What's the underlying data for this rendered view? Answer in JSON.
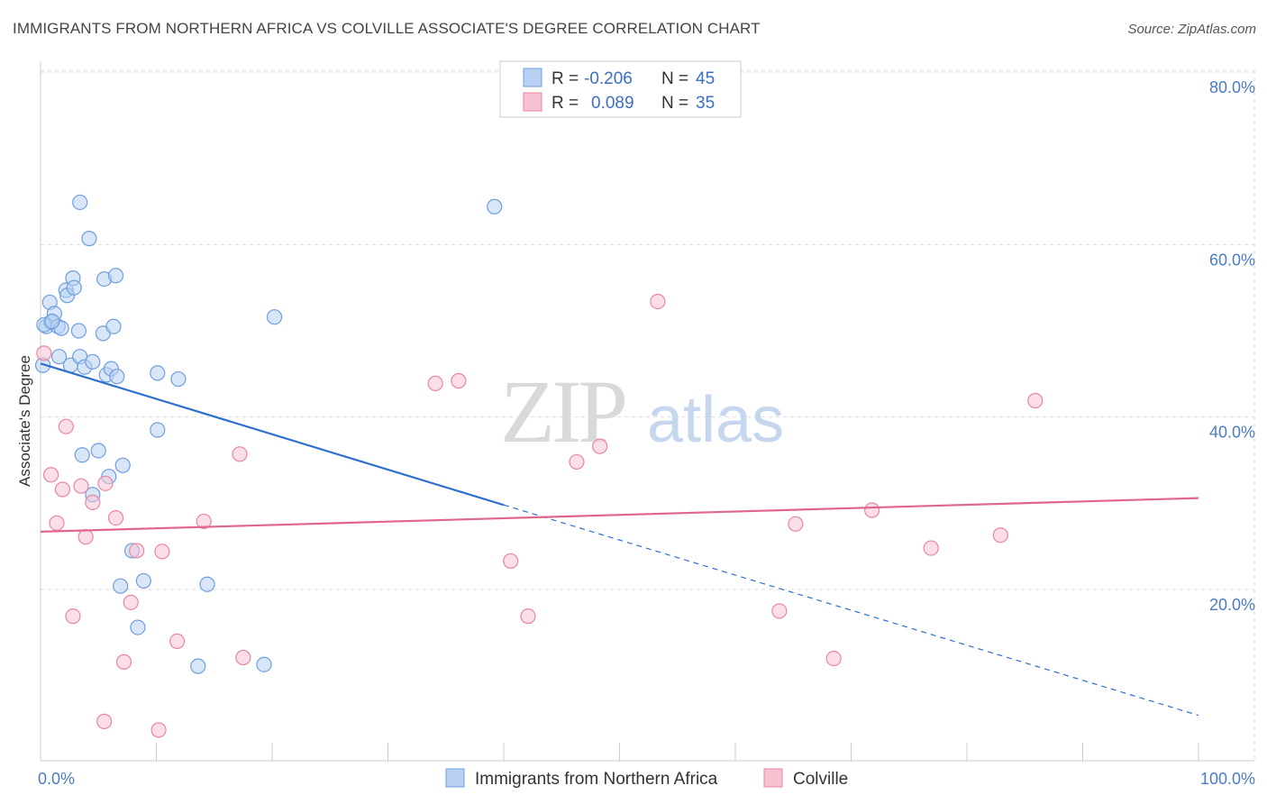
{
  "title": "IMMIGRANTS FROM NORTHERN AFRICA VS COLVILLE ASSOCIATE'S DEGREE CORRELATION CHART",
  "source": "Source: ZipAtlas.com",
  "watermark": {
    "zip": "ZIP",
    "atlas": "atlas"
  },
  "colors": {
    "blue_fill": "#b8d1f3",
    "blue_stroke": "#6f9fdc",
    "blue_line": "#2f6fcd",
    "pink_fill": "#f7c3d3",
    "pink_stroke": "#e8869f",
    "pink_line": "#e0668d",
    "grid": "#dddddd",
    "tick_text": "#4a7bc8"
  },
  "legend": {
    "r_label": "R =",
    "n_label": "N =",
    "rows": [
      {
        "r": "-0.206",
        "n": "45",
        "series": "blue"
      },
      {
        "r": "0.089",
        "n": "35",
        "series": "pink"
      }
    ]
  },
  "chart_data": {
    "type": "scatter",
    "title": "IMMIGRANTS FROM NORTHERN AFRICA VS COLVILLE ASSOCIATE'S DEGREE CORRELATION CHART",
    "xlabel": "",
    "ylabel": "Associate's Degree",
    "xlim": [
      0,
      100
    ],
    "ylim": [
      0,
      85
    ],
    "x_tick_labels": [
      "0.0%",
      "100.0%"
    ],
    "y_ticks": [
      20,
      40,
      60,
      80
    ],
    "y_tick_labels": [
      "20.0%",
      "40.0%",
      "60.0%",
      "80.0%"
    ],
    "grid": true,
    "legend_position": "top-center",
    "series": [
      {
        "name": "Immigrants from Northern Africa",
        "color": "blue",
        "r": -0.206,
        "n": 45,
        "trend": {
          "x0": 0,
          "y0": 46.2,
          "x1": 40,
          "y1": 29.8,
          "dashed_to_x": 100,
          "dashed_to_y": 5.4
        },
        "points": [
          [
            0.2,
            46
          ],
          [
            0.5,
            50.5
          ],
          [
            0.8,
            53.3
          ],
          [
            0.9,
            51
          ],
          [
            1.2,
            52
          ],
          [
            1.5,
            50.5
          ],
          [
            1.6,
            47
          ],
          [
            1.8,
            50.3
          ],
          [
            2.2,
            54.7
          ],
          [
            2.3,
            54.1
          ],
          [
            2.6,
            46
          ],
          [
            2.8,
            56.1
          ],
          [
            2.9,
            55
          ],
          [
            3.3,
            50
          ],
          [
            3.4,
            47
          ],
          [
            3.4,
            64.9
          ],
          [
            3.6,
            35.6
          ],
          [
            3.8,
            45.8
          ],
          [
            4.2,
            60.7
          ],
          [
            4.5,
            46.4
          ],
          [
            4.5,
            31
          ],
          [
            5.0,
            36.1
          ],
          [
            5.4,
            49.7
          ],
          [
            5.5,
            56
          ],
          [
            5.7,
            44.9
          ],
          [
            5.9,
            33.1
          ],
          [
            6.1,
            45.6
          ],
          [
            6.3,
            50.5
          ],
          [
            6.5,
            56.4
          ],
          [
            6.6,
            44.7
          ],
          [
            6.9,
            20.4
          ],
          [
            7.1,
            34.4
          ],
          [
            7.9,
            24.5
          ],
          [
            8.4,
            15.6
          ],
          [
            8.9,
            21
          ],
          [
            10.1,
            38.5
          ],
          [
            10.1,
            45.1
          ],
          [
            11.9,
            44.4
          ],
          [
            13.6,
            11.1
          ],
          [
            14.4,
            20.6
          ],
          [
            19.3,
            11.3
          ],
          [
            20.2,
            51.6
          ],
          [
            39.2,
            64.4
          ],
          [
            0.3,
            50.7
          ],
          [
            1.0,
            51.1
          ]
        ]
      },
      {
        "name": "Colville",
        "color": "pink",
        "r": 0.089,
        "n": 35,
        "trend": {
          "x0": 0,
          "y0": 26.7,
          "x1": 100,
          "y1": 30.6
        },
        "points": [
          [
            0.3,
            47.4
          ],
          [
            0.9,
            33.3
          ],
          [
            1.4,
            27.7
          ],
          [
            1.9,
            31.6
          ],
          [
            2.2,
            38.9
          ],
          [
            2.8,
            16.9
          ],
          [
            3.5,
            32
          ],
          [
            3.9,
            26.1
          ],
          [
            4.5,
            30.1
          ],
          [
            5.5,
            4.7
          ],
          [
            5.6,
            32.3
          ],
          [
            6.5,
            28.3
          ],
          [
            7.2,
            11.6
          ],
          [
            7.8,
            18.5
          ],
          [
            8.3,
            24.5
          ],
          [
            10.2,
            3.7
          ],
          [
            11.8,
            14
          ],
          [
            14.1,
            27.9
          ],
          [
            17.2,
            35.7
          ],
          [
            17.5,
            12.1
          ],
          [
            34.1,
            43.9
          ],
          [
            36.1,
            44.2
          ],
          [
            40.6,
            23.3
          ],
          [
            42.1,
            16.9
          ],
          [
            46.3,
            34.8
          ],
          [
            48.3,
            36.6
          ],
          [
            53.3,
            53.4
          ],
          [
            63.8,
            17.5
          ],
          [
            65.2,
            27.6
          ],
          [
            68.5,
            12
          ],
          [
            71.8,
            29.2
          ],
          [
            76.9,
            24.8
          ],
          [
            82.9,
            26.3
          ],
          [
            85.9,
            41.9
          ],
          [
            10.5,
            24.4
          ]
        ]
      }
    ]
  },
  "bottom_legend": [
    {
      "label": "Immigrants from Northern Africa",
      "series": "blue"
    },
    {
      "label": "Colville",
      "series": "pink"
    }
  ]
}
